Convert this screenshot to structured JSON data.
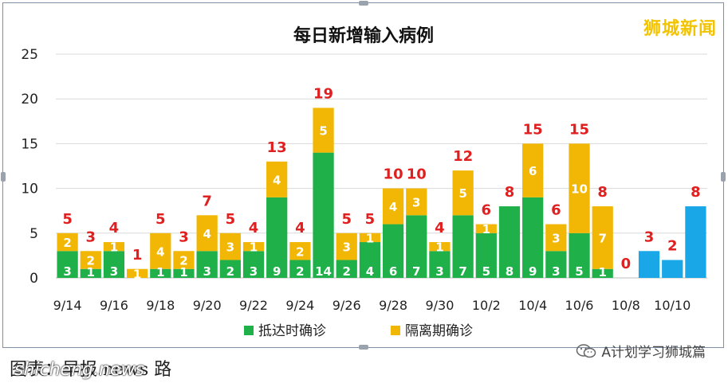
{
  "chart_data": {
    "type": "bar",
    "title": "每日新增输入病例",
    "categories": [
      "9/14",
      "9/15",
      "9/16",
      "9/17",
      "9/18",
      "9/19",
      "9/20",
      "9/21",
      "9/22",
      "9/23",
      "9/24",
      "9/25",
      "9/26",
      "9/27",
      "9/28",
      "9/29",
      "9/30",
      "10/1",
      "10/2",
      "10/3",
      "10/4",
      "10/5",
      "10/6",
      "10/7",
      "10/8",
      "10/9",
      "10/10",
      "10/11"
    ],
    "x_tick_labels": [
      "9/14",
      "9/16",
      "9/18",
      "9/20",
      "9/22",
      "9/24",
      "9/26",
      "9/28",
      "9/30",
      "10/2",
      "10/4",
      "10/6",
      "10/8",
      "10/10"
    ],
    "series": [
      {
        "name": "抵达时确诊",
        "color": "#20b04a",
        "values": [
          3,
          1,
          3,
          0,
          1,
          1,
          3,
          2,
          3,
          9,
          2,
          14,
          2,
          4,
          6,
          7,
          3,
          7,
          5,
          8,
          9,
          3,
          5,
          1,
          0,
          null,
          null,
          null
        ]
      },
      {
        "name": "隔离期确诊",
        "color": "#f2b705",
        "values": [
          2,
          2,
          1,
          1,
          4,
          2,
          4,
          3,
          1,
          4,
          2,
          5,
          3,
          1,
          4,
          3,
          1,
          5,
          1,
          0,
          6,
          3,
          10,
          7,
          0,
          null,
          null,
          null
        ]
      },
      {
        "name": "",
        "color": "#1aa7e8",
        "values": [
          null,
          null,
          null,
          null,
          null,
          null,
          null,
          null,
          null,
          null,
          null,
          null,
          null,
          null,
          null,
          null,
          null,
          null,
          null,
          null,
          null,
          null,
          null,
          null,
          null,
          3,
          2,
          8
        ]
      }
    ],
    "segment_labels_1": [
      "3",
      "1",
      "3",
      "",
      "1",
      "1",
      "3",
      "2",
      "3",
      "9",
      "2",
      "14",
      "2",
      "4",
      "6",
      "7",
      "3",
      "7",
      "5",
      "8",
      "9",
      "3",
      "5",
      "1",
      "",
      "",
      "",
      ""
    ],
    "segment_labels_2": [
      "2",
      "2",
      "1",
      "1",
      "4",
      "2",
      "4",
      "3",
      "1",
      "4",
      "2",
      "5",
      "3",
      "1",
      "4",
      "3",
      "1",
      "5",
      "1",
      "",
      "6",
      "3",
      "10",
      "7",
      "",
      "",
      "",
      ""
    ],
    "totals": [
      "5",
      "3",
      "4",
      "1",
      "5",
      "3",
      "7",
      "5",
      "4",
      "13",
      "4",
      "19",
      "5",
      "5",
      "10",
      "10",
      "4",
      "12",
      "6",
      "8",
      "15",
      "6",
      "15",
      "8",
      "0",
      "3",
      "2",
      "8"
    ],
    "ylim": [
      0,
      25
    ],
    "yticks": [
      "0",
      "5",
      "10",
      "15",
      "20",
      "25"
    ],
    "grid": true,
    "legend_position": "bottom",
    "total_label_color": "#e02020"
  },
  "brand": "狮城新闻",
  "caption_text": "图表：早报.news 路",
  "caption_overlay": "shicheng.news",
  "wechat_account": "A计划学习狮城篇"
}
